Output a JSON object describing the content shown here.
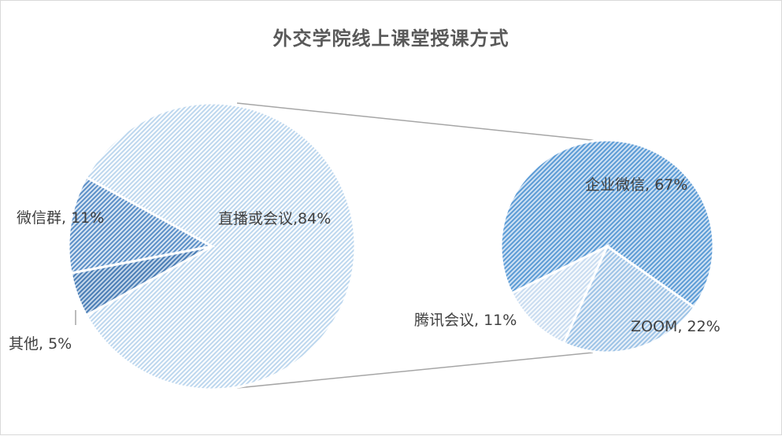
{
  "chart_data": {
    "type": "pie-of-pie",
    "title": "外交学院线上课堂授课方式",
    "main_pie": {
      "slices": [
        {
          "label": "直播或会议",
          "value": 84,
          "display": "直播或会议,84%",
          "color": "#bdd7ee"
        },
        {
          "label": "微信群",
          "value": 11,
          "display": "微信群, 11%",
          "color": "#5b8fc7"
        },
        {
          "label": "其他",
          "value": 5,
          "display": "其他, 5%",
          "color": "#4a7db5"
        }
      ]
    },
    "secondary_pie": {
      "parent": "直播或会议",
      "slices": [
        {
          "label": "企业微信",
          "value": 67,
          "display": "企业微信, 67%",
          "color": "#5b9bd5"
        },
        {
          "label": "ZOOM",
          "value": 22,
          "display": "ZOOM, 22%",
          "color": "#9dc3e6"
        },
        {
          "label": "腾讯会议",
          "value": 11,
          "display": "腾讯会议, 11%",
          "color": "#c9dcf0"
        }
      ]
    },
    "legend": "none"
  }
}
